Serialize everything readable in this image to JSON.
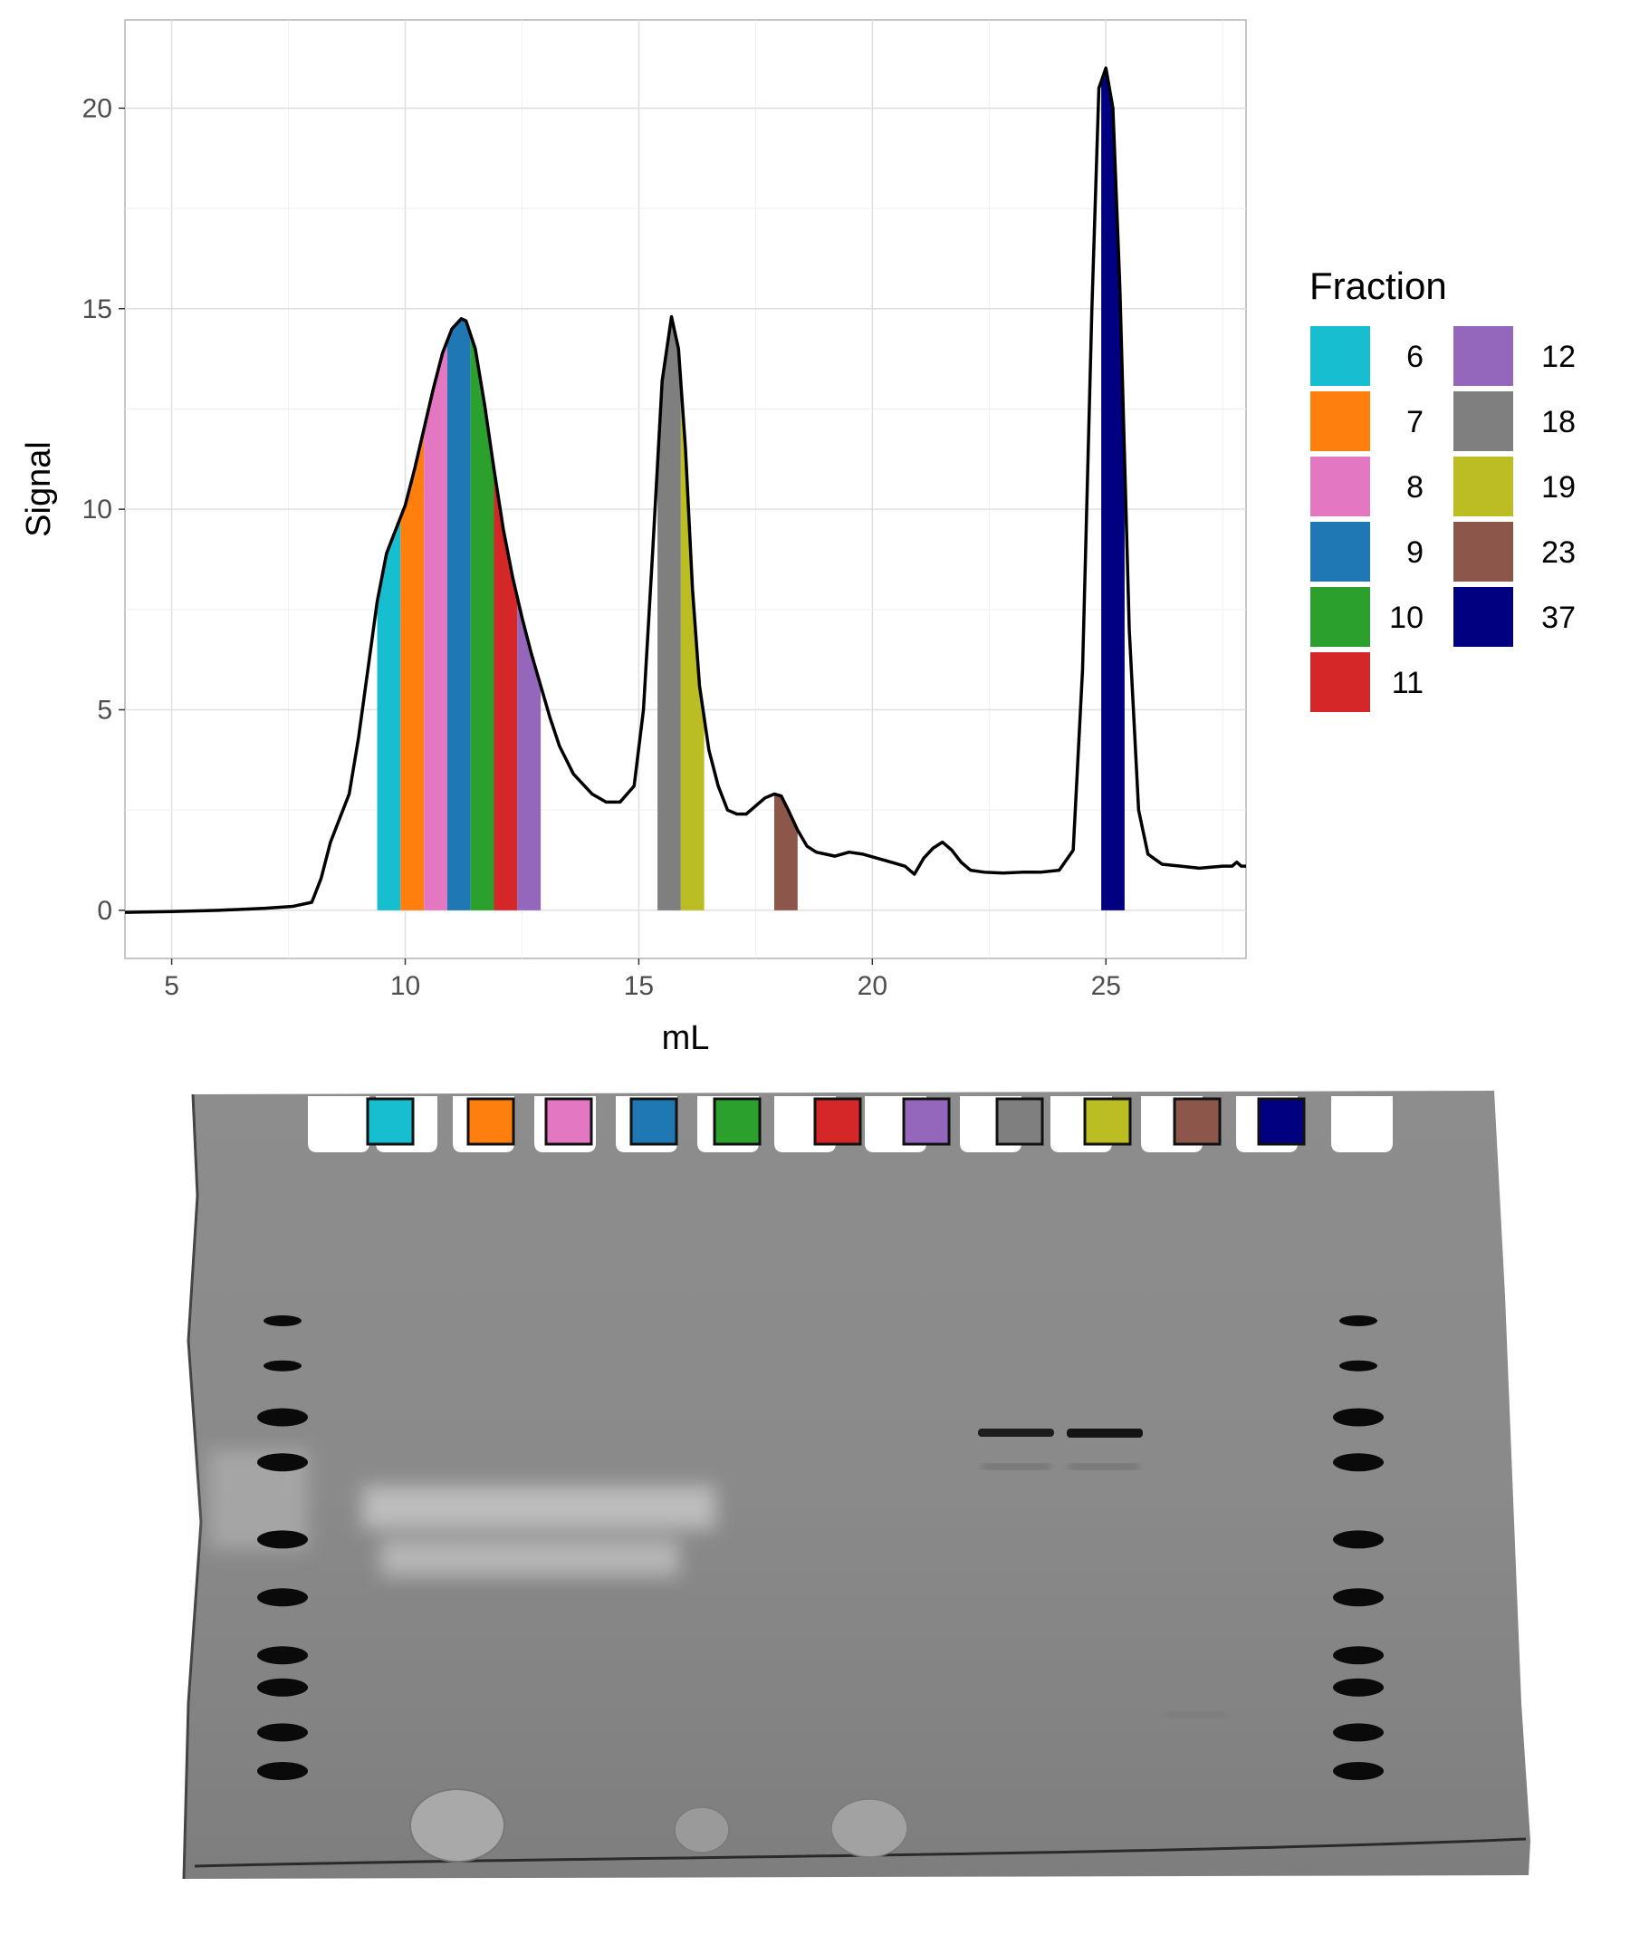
{
  "chart_data": {
    "type": "area",
    "xlabel": "mL",
    "ylabel": "Signal",
    "xlim": [
      4,
      28
    ],
    "ylim": [
      -1.2,
      22.2
    ],
    "xticks": [
      5,
      10,
      15,
      20,
      25
    ],
    "yticks": [
      0,
      5,
      10,
      15,
      20
    ],
    "grid": true,
    "legend": {
      "title": "Fraction",
      "position": "right",
      "columns": 2
    },
    "trace": {
      "x": [
        4.0,
        5.0,
        6.0,
        7.0,
        7.6,
        8.0,
        8.2,
        8.4,
        8.6,
        8.8,
        9.0,
        9.2,
        9.4,
        9.6,
        9.8,
        10.0,
        10.2,
        10.4,
        10.6,
        10.8,
        11.0,
        11.2,
        11.3,
        11.5,
        11.7,
        11.9,
        12.1,
        12.3,
        12.5,
        12.7,
        12.9,
        13.1,
        13.3,
        13.6,
        14.0,
        14.3,
        14.6,
        14.9,
        15.1,
        15.3,
        15.5,
        15.7,
        15.85,
        16.0,
        16.15,
        16.3,
        16.5,
        16.7,
        16.9,
        17.1,
        17.3,
        17.5,
        17.7,
        17.9,
        18.05,
        18.2,
        18.4,
        18.6,
        18.8,
        19.0,
        19.2,
        19.5,
        19.8,
        20.1,
        20.4,
        20.7,
        20.9,
        21.1,
        21.3,
        21.5,
        21.7,
        21.9,
        22.1,
        22.4,
        22.8,
        23.2,
        23.6,
        24.0,
        24.3,
        24.5,
        24.7,
        24.85,
        25.0,
        25.15,
        25.3,
        25.5,
        25.7,
        25.9,
        26.2,
        26.6,
        27.0,
        27.5,
        27.7,
        27.8,
        27.9,
        28.0
      ],
      "y": [
        -0.05,
        -0.03,
        0.0,
        0.05,
        0.1,
        0.2,
        0.8,
        1.7,
        2.3,
        2.9,
        4.3,
        6.0,
        7.7,
        8.9,
        9.5,
        10.1,
        11.0,
        12.0,
        13.0,
        13.9,
        14.5,
        14.75,
        14.7,
        14.0,
        12.6,
        11.0,
        9.5,
        8.3,
        7.3,
        6.4,
        5.6,
        4.8,
        4.1,
        3.4,
        2.9,
        2.7,
        2.7,
        3.1,
        5.0,
        9.0,
        13.2,
        14.8,
        14.0,
        11.5,
        8.0,
        5.6,
        4.0,
        3.1,
        2.5,
        2.4,
        2.4,
        2.6,
        2.8,
        2.9,
        2.85,
        2.5,
        2.0,
        1.6,
        1.45,
        1.4,
        1.35,
        1.45,
        1.4,
        1.3,
        1.2,
        1.1,
        0.9,
        1.3,
        1.55,
        1.7,
        1.5,
        1.2,
        1.0,
        0.95,
        0.93,
        0.95,
        0.95,
        1.0,
        1.5,
        6.0,
        15.0,
        20.5,
        21.0,
        20.0,
        15.5,
        7.0,
        2.5,
        1.4,
        1.15,
        1.1,
        1.05,
        1.1,
        1.1,
        1.2,
        1.1,
        1.1
      ]
    },
    "fractions": [
      {
        "label": "6",
        "color": "#17becf",
        "x_start": 9.4,
        "x_end": 9.9
      },
      {
        "label": "7",
        "color": "#ff7f0e",
        "x_start": 9.9,
        "x_end": 10.4
      },
      {
        "label": "8",
        "color": "#e377c2",
        "x_start": 10.4,
        "x_end": 10.9
      },
      {
        "label": "9",
        "color": "#1f77b4",
        "x_start": 10.9,
        "x_end": 11.4
      },
      {
        "label": "10",
        "color": "#2ca02c",
        "x_start": 11.4,
        "x_end": 11.9
      },
      {
        "label": "11",
        "color": "#d62728",
        "x_start": 11.9,
        "x_end": 12.4
      },
      {
        "label": "12",
        "color": "#9467bd",
        "x_start": 12.4,
        "x_end": 12.9
      },
      {
        "label": "18",
        "color": "#7f7f7f",
        "x_start": 15.4,
        "x_end": 15.9
      },
      {
        "label": "19",
        "color": "#bcbd22",
        "x_start": 15.9,
        "x_end": 16.4
      },
      {
        "label": "23",
        "color": "#8c564b",
        "x_start": 17.9,
        "x_end": 18.4
      },
      {
        "label": "37",
        "color": "#000080",
        "x_start": 24.9,
        "x_end": 25.4
      }
    ]
  },
  "gel": {
    "lane_colors": [
      "#17becf",
      "#ff7f0e",
      "#e377c2",
      "#1f77b4",
      "#2ca02c",
      "#d62728",
      "#9467bd",
      "#7f7f7f",
      "#bcbd22",
      "#8c564b",
      "#000080"
    ],
    "ladder_bands": [
      0.0,
      0.07,
      0.15,
      0.22,
      0.34,
      0.43,
      0.52,
      0.57,
      0.64,
      0.7
    ]
  }
}
